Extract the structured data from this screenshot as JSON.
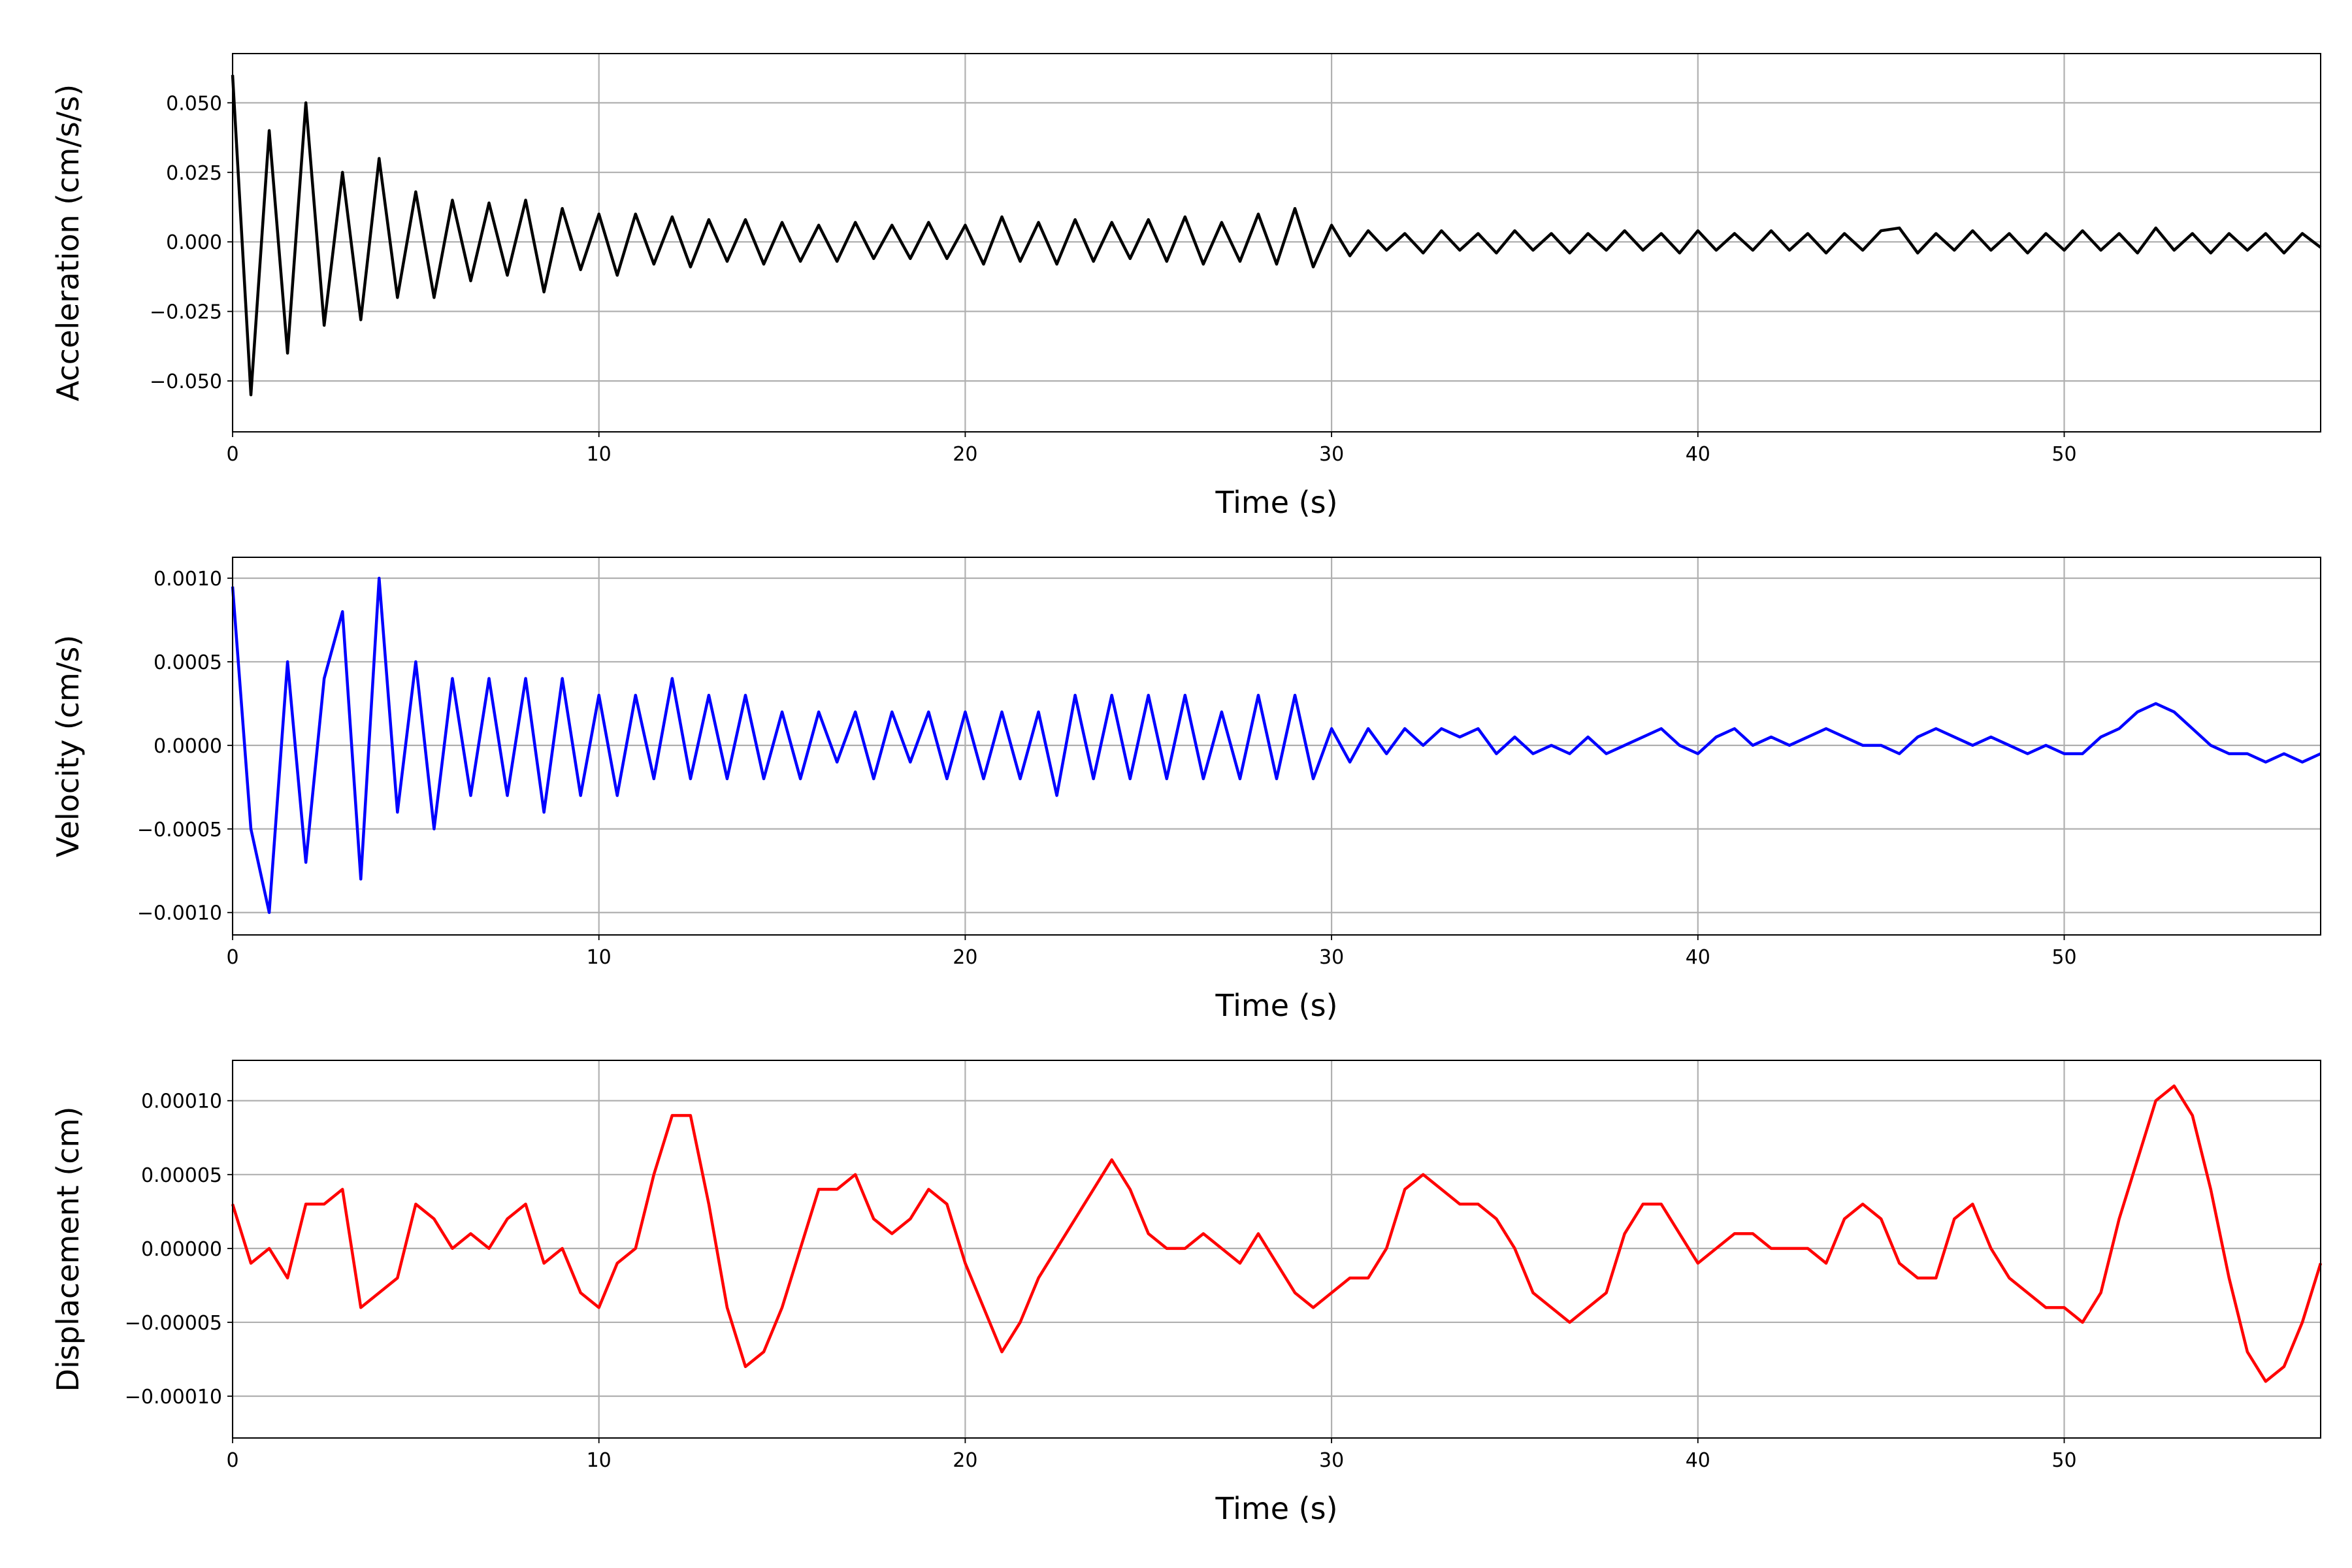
{
  "chart_data": [
    {
      "type": "line",
      "ylabel": "Acceleration (cm/s/s)",
      "xlabel": "Time (s)",
      "color": "#000000",
      "grid": true,
      "xlim": [
        0,
        57
      ],
      "xticks": [
        0,
        10,
        20,
        30,
        40,
        50
      ],
      "ylim": [
        -0.0683,
        0.0677
      ],
      "yticks": [
        {
          "value": -0.05,
          "label": "−0.050"
        },
        {
          "value": -0.025,
          "label": "−0.025"
        },
        {
          "value": 0,
          "label": "0.000"
        },
        {
          "value": 0.025,
          "label": "0.025"
        },
        {
          "value": 0.05,
          "label": "0.050"
        }
      ],
      "x": [
        0,
        0.5,
        1,
        1.5,
        2,
        2.5,
        3,
        3.5,
        4,
        4.5,
        5,
        5.5,
        6,
        6.5,
        7,
        7.5,
        8,
        8.5,
        9,
        9.5,
        10,
        10.5,
        11,
        11.5,
        12,
        12.5,
        13,
        13.5,
        14,
        14.5,
        15,
        15.5,
        16,
        16.5,
        17,
        17.5,
        18,
        18.5,
        19,
        19.5,
        20,
        20.5,
        21,
        21.5,
        22,
        22.5,
        23,
        23.5,
        24,
        24.5,
        25,
        25.5,
        26,
        26.5,
        27,
        27.5,
        28,
        28.5,
        29,
        29.5,
        30,
        30.5,
        31,
        31.5,
        32,
        32.5,
        33,
        33.5,
        34,
        34.5,
        35,
        35.5,
        36,
        36.5,
        37,
        37.5,
        38,
        38.5,
        39,
        39.5,
        40,
        40.5,
        41,
        41.5,
        42,
        42.5,
        43,
        43.5,
        44,
        44.5,
        45,
        45.5,
        46,
        46.5,
        47,
        47.5,
        48,
        48.5,
        49,
        49.5,
        50,
        50.5,
        51,
        51.5,
        52,
        52.5,
        53,
        53.5,
        54,
        54.5,
        55,
        55.5,
        56,
        56.5,
        57
      ],
      "values": [
        0.06,
        -0.055,
        0.04,
        -0.04,
        0.05,
        -0.03,
        0.025,
        -0.028,
        0.03,
        -0.02,
        0.018,
        -0.02,
        0.015,
        -0.014,
        0.014,
        -0.012,
        0.015,
        -0.018,
        0.012,
        -0.01,
        0.01,
        -0.012,
        0.01,
        -0.008,
        0.009,
        -0.009,
        0.008,
        -0.007,
        0.008,
        -0.008,
        0.007,
        -0.007,
        0.006,
        -0.007,
        0.007,
        -0.006,
        0.006,
        -0.006,
        0.007,
        -0.006,
        0.006,
        -0.008,
        0.009,
        -0.007,
        0.007,
        -0.008,
        0.008,
        -0.007,
        0.007,
        -0.006,
        0.008,
        -0.007,
        0.009,
        -0.008,
        0.007,
        -0.007,
        0.01,
        -0.008,
        0.012,
        -0.009,
        0.006,
        -0.005,
        0.004,
        -0.003,
        0.003,
        -0.004,
        0.004,
        -0.003,
        0.003,
        -0.004,
        0.004,
        -0.003,
        0.003,
        -0.004,
        0.003,
        -0.003,
        0.004,
        -0.003,
        0.003,
        -0.004,
        0.004,
        -0.003,
        0.003,
        -0.003,
        0.004,
        -0.003,
        0.003,
        -0.004,
        0.003,
        -0.003,
        0.004,
        0.005,
        -0.004,
        0.003,
        -0.003,
        0.004,
        -0.003,
        0.003,
        -0.004,
        0.003,
        -0.003,
        0.004,
        -0.003,
        0.003,
        -0.004,
        0.005,
        -0.003,
        0.003,
        -0.004,
        0.003,
        -0.003,
        0.003,
        -0.004,
        0.003,
        -0.002
      ]
    },
    {
      "type": "line",
      "ylabel": "Velocity (cm/s)",
      "xlabel": "Time (s)",
      "color": "#0000ff",
      "grid": true,
      "xlim": [
        0,
        57
      ],
      "xticks": [
        0,
        10,
        20,
        30,
        40,
        50
      ],
      "ylim": [
        -0.001134,
        0.001125
      ],
      "yticks": [
        {
          "value": -0.001,
          "label": "−0.0010"
        },
        {
          "value": -0.0005,
          "label": "−0.0005"
        },
        {
          "value": 0,
          "label": "0.0000"
        },
        {
          "value": 0.0005,
          "label": "0.0005"
        },
        {
          "value": 0.001,
          "label": "0.0010"
        }
      ],
      "x": [
        0,
        0.5,
        1,
        1.5,
        2,
        2.5,
        3,
        3.5,
        4,
        4.5,
        5,
        5.5,
        6,
        6.5,
        7,
        7.5,
        8,
        8.5,
        9,
        9.5,
        10,
        10.5,
        11,
        11.5,
        12,
        12.5,
        13,
        13.5,
        14,
        14.5,
        15,
        15.5,
        16,
        16.5,
        17,
        17.5,
        18,
        18.5,
        19,
        19.5,
        20,
        20.5,
        21,
        21.5,
        22,
        22.5,
        23,
        23.5,
        24,
        24.5,
        25,
        25.5,
        26,
        26.5,
        27,
        27.5,
        28,
        28.5,
        29,
        29.5,
        30,
        30.5,
        31,
        31.5,
        32,
        32.5,
        33,
        33.5,
        34,
        34.5,
        35,
        35.5,
        36,
        36.5,
        37,
        37.5,
        38,
        38.5,
        39,
        39.5,
        40,
        40.5,
        41,
        41.5,
        42,
        42.5,
        43,
        43.5,
        44,
        44.5,
        45,
        45.5,
        46,
        46.5,
        47,
        47.5,
        48,
        48.5,
        49,
        49.5,
        50,
        50.5,
        51,
        51.5,
        52,
        52.5,
        53,
        53.5,
        54,
        54.5,
        55,
        55.5,
        56,
        56.5,
        57
      ],
      "values": [
        0.00095,
        -0.0005,
        -0.001,
        0.0005,
        -0.0007,
        0.0004,
        0.0008,
        -0.0008,
        0.001,
        -0.0004,
        0.0005,
        -0.0005,
        0.0004,
        -0.0003,
        0.0004,
        -0.0003,
        0.0004,
        -0.0004,
        0.0004,
        -0.0003,
        0.0003,
        -0.0003,
        0.0003,
        -0.0002,
        0.0004,
        -0.0002,
        0.0003,
        -0.0002,
        0.0003,
        -0.0002,
        0.0002,
        -0.0002,
        0.0002,
        -0.0001,
        0.0002,
        -0.0002,
        0.0002,
        -0.0001,
        0.0002,
        -0.0002,
        0.0002,
        -0.0002,
        0.0002,
        -0.0002,
        0.0002,
        -0.0003,
        0.0003,
        -0.0002,
        0.0003,
        -0.0002,
        0.0003,
        -0.0002,
        0.0003,
        -0.0002,
        0.0002,
        -0.0002,
        0.0003,
        -0.0002,
        0.0003,
        -0.0002,
        0.0001,
        -0.0001,
        0.0001,
        -5e-05,
        0.0001,
        0,
        0.0001,
        5e-05,
        0.0001,
        -5e-05,
        5e-05,
        -5e-05,
        0,
        -5e-05,
        5e-05,
        -5e-05,
        0,
        5e-05,
        0.0001,
        0,
        -5e-05,
        5e-05,
        0.0001,
        0,
        5e-05,
        0,
        5e-05,
        0.0001,
        5e-05,
        0,
        0,
        -5e-05,
        5e-05,
        0.0001,
        5e-05,
        0,
        5e-05,
        0,
        -5e-05,
        0,
        -5e-05,
        -5e-05,
        5e-05,
        0.0001,
        0.0002,
        0.00025,
        0.0002,
        0.0001,
        0,
        -5e-05,
        -5e-05,
        -0.0001,
        -5e-05,
        -0.0001,
        -5e-05
      ]
    },
    {
      "type": "line",
      "ylabel": "Displacement (cm)",
      "xlabel": "Time (s)",
      "color": "#ff0000",
      "grid": true,
      "xlim": [
        0,
        57
      ],
      "xticks": [
        0,
        10,
        20,
        30,
        40,
        50
      ],
      "ylim": [
        -0.0001283,
        0.0001273
      ],
      "yticks": [
        {
          "value": -0.0001,
          "label": "−0.00010"
        },
        {
          "value": -5e-05,
          "label": "−0.00005"
        },
        {
          "value": 0,
          "label": "0.00000"
        },
        {
          "value": 5e-05,
          "label": "0.00005"
        },
        {
          "value": 0.0001,
          "label": "0.00010"
        }
      ],
      "x": [
        0,
        0.5,
        1,
        1.5,
        2,
        2.5,
        3,
        3.5,
        4,
        4.5,
        5,
        5.5,
        6,
        6.5,
        7,
        7.5,
        8,
        8.5,
        9,
        9.5,
        10,
        10.5,
        11,
        11.5,
        12,
        12.5,
        13,
        13.5,
        14,
        14.5,
        15,
        15.5,
        16,
        16.5,
        17,
        17.5,
        18,
        18.5,
        19,
        19.5,
        20,
        20.5,
        21,
        21.5,
        22,
        22.5,
        23,
        23.5,
        24,
        24.5,
        25,
        25.5,
        26,
        26.5,
        27,
        27.5,
        28,
        28.5,
        29,
        29.5,
        30,
        30.5,
        31,
        31.5,
        32,
        32.5,
        33,
        33.5,
        34,
        34.5,
        35,
        35.5,
        36,
        36.5,
        37,
        37.5,
        38,
        38.5,
        39,
        39.5,
        40,
        40.5,
        41,
        41.5,
        42,
        42.5,
        43,
        43.5,
        44,
        44.5,
        45,
        45.5,
        46,
        46.5,
        47,
        47.5,
        48,
        48.5,
        49,
        49.5,
        50,
        50.5,
        51,
        51.5,
        52,
        52.5,
        53,
        53.5,
        54,
        54.5,
        55,
        55.5,
        56,
        56.5,
        57
      ],
      "values": [
        3e-05,
        -1e-05,
        0,
        -2e-05,
        3e-05,
        3e-05,
        4e-05,
        -4e-05,
        -3e-05,
        -2e-05,
        3e-05,
        2e-05,
        0,
        1e-05,
        0,
        2e-05,
        3e-05,
        -1e-05,
        0,
        -3e-05,
        -4e-05,
        -1e-05,
        0,
        5e-05,
        9e-05,
        9e-05,
        3e-05,
        -4e-05,
        -8e-05,
        -7e-05,
        -4e-05,
        0,
        4e-05,
        4e-05,
        5e-05,
        2e-05,
        1e-05,
        2e-05,
        4e-05,
        3e-05,
        -1e-05,
        -4e-05,
        -7e-05,
        -5e-05,
        -2e-05,
        0,
        2e-05,
        4e-05,
        6e-05,
        4e-05,
        1e-05,
        0,
        0,
        1e-05,
        0,
        -1e-05,
        1e-05,
        -1e-05,
        -3e-05,
        -4e-05,
        -3e-05,
        -2e-05,
        -2e-05,
        0,
        4e-05,
        5e-05,
        4e-05,
        3e-05,
        3e-05,
        2e-05,
        0,
        -3e-05,
        -4e-05,
        -5e-05,
        -4e-05,
        -3e-05,
        1e-05,
        3e-05,
        3e-05,
        1e-05,
        -1e-05,
        0,
        1e-05,
        1e-05,
        0,
        0,
        0,
        -1e-05,
        2e-05,
        3e-05,
        2e-05,
        -1e-05,
        -2e-05,
        -2e-05,
        2e-05,
        3e-05,
        0,
        -2e-05,
        -3e-05,
        -4e-05,
        -4e-05,
        -5e-05,
        -3e-05,
        2e-05,
        6e-05,
        0.0001,
        0.00011,
        9e-05,
        4e-05,
        -2e-05,
        -7e-05,
        -9e-05,
        -8e-05,
        -5e-05,
        -1e-05
      ]
    }
  ]
}
